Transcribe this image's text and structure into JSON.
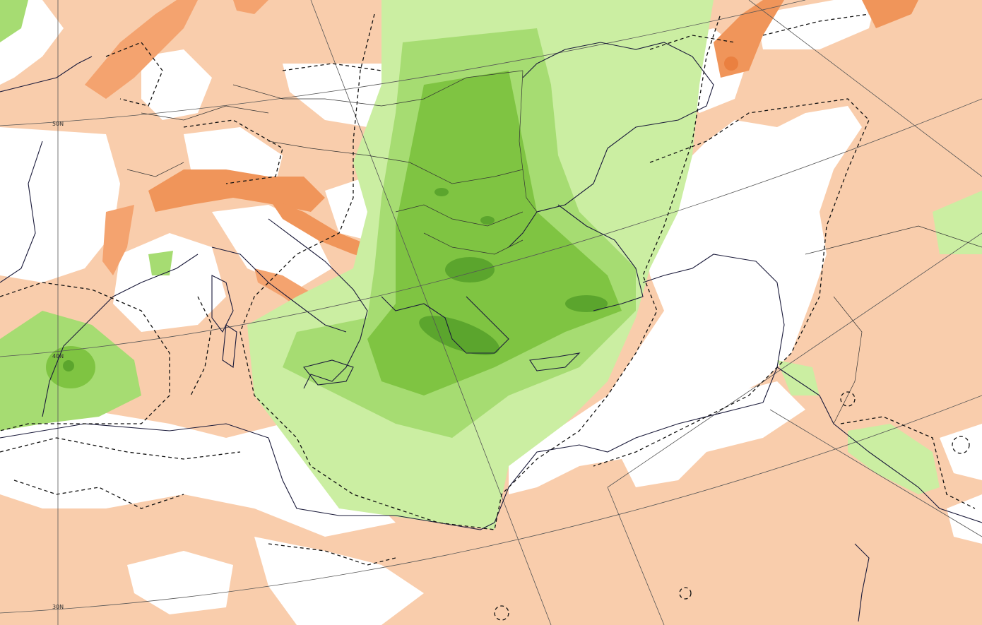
{
  "graticule_labels": [
    "50N",
    "40N",
    "30N"
  ]
}
